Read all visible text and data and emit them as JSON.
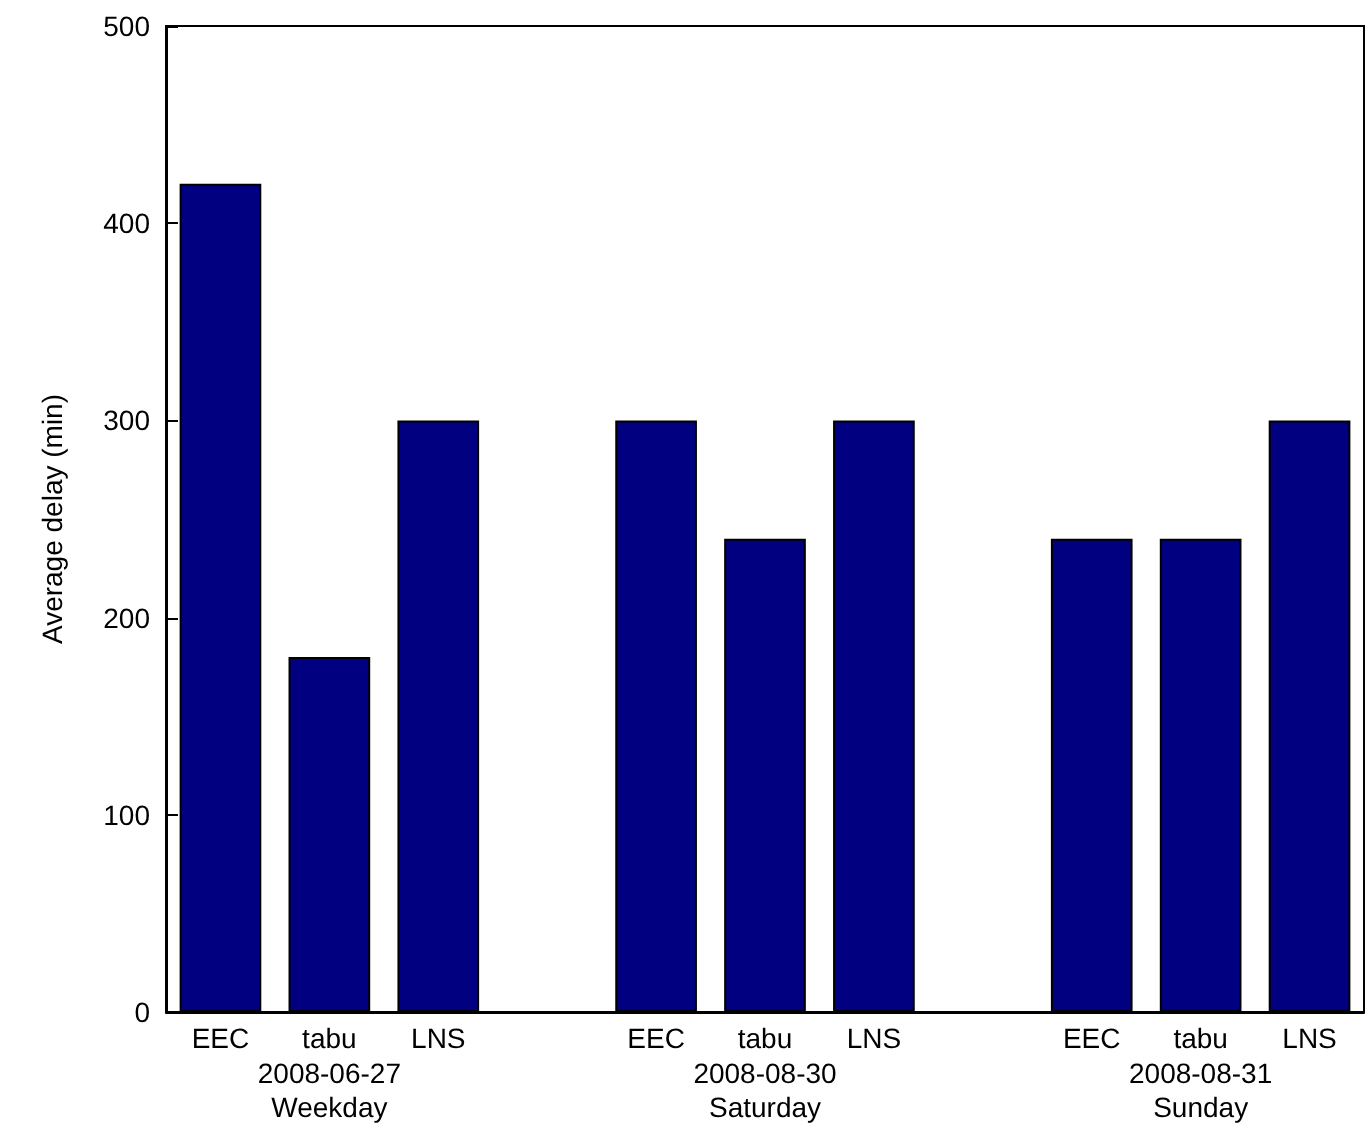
{
  "chart_data": {
    "type": "bar",
    "ylabel": "Average delay (min)",
    "categories": [
      "EEC",
      "tabu",
      "LNS",
      null,
      "EEC",
      "tabu",
      "LNS",
      null,
      "EEC",
      "tabu",
      "LNS"
    ],
    "values": [
      420,
      180,
      300,
      null,
      300,
      240,
      300,
      null,
      240,
      240,
      300
    ],
    "color": "#000080",
    "ylim": [
      0,
      500
    ],
    "yticks": [
      0,
      100,
      200,
      300,
      400,
      500
    ],
    "annotations": [
      "2008-06-27\nWeekday",
      "2008-08-30\nSaturday",
      "2008-08-31\nSunday"
    ],
    "grid": false
  }
}
